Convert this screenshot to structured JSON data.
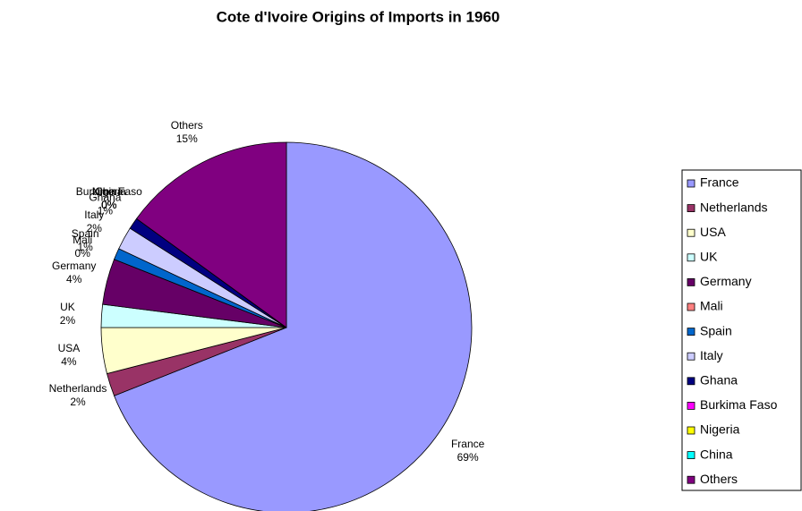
{
  "chart_data": {
    "type": "pie",
    "title": "Cote d'Ivoire Origins of Imports in 1960",
    "categories": [
      "France",
      "Netherlands",
      "USA",
      "UK",
      "Germany",
      "Mali",
      "Spain",
      "Italy",
      "Ghana",
      "Burkima Faso",
      "Nigeria",
      "China",
      "Others"
    ],
    "values": [
      69,
      2,
      4,
      2,
      4,
      0,
      1,
      2,
      1,
      0,
      0,
      0,
      15
    ],
    "value_labels": [
      "69%",
      "2%",
      "4%",
      "2%",
      "4%",
      "0%",
      "1%",
      "2%",
      "1%",
      "0%",
      "0%",
      "0%",
      "15%"
    ],
    "colors": [
      "#9999ff",
      "#993366",
      "#ffffcc",
      "#ccffff",
      "#660066",
      "#ff8080",
      "#0066cc",
      "#ccccff",
      "#000080",
      "#ff00ff",
      "#ffff00",
      "#00ffff",
      "#800080"
    ],
    "legend": "right"
  }
}
